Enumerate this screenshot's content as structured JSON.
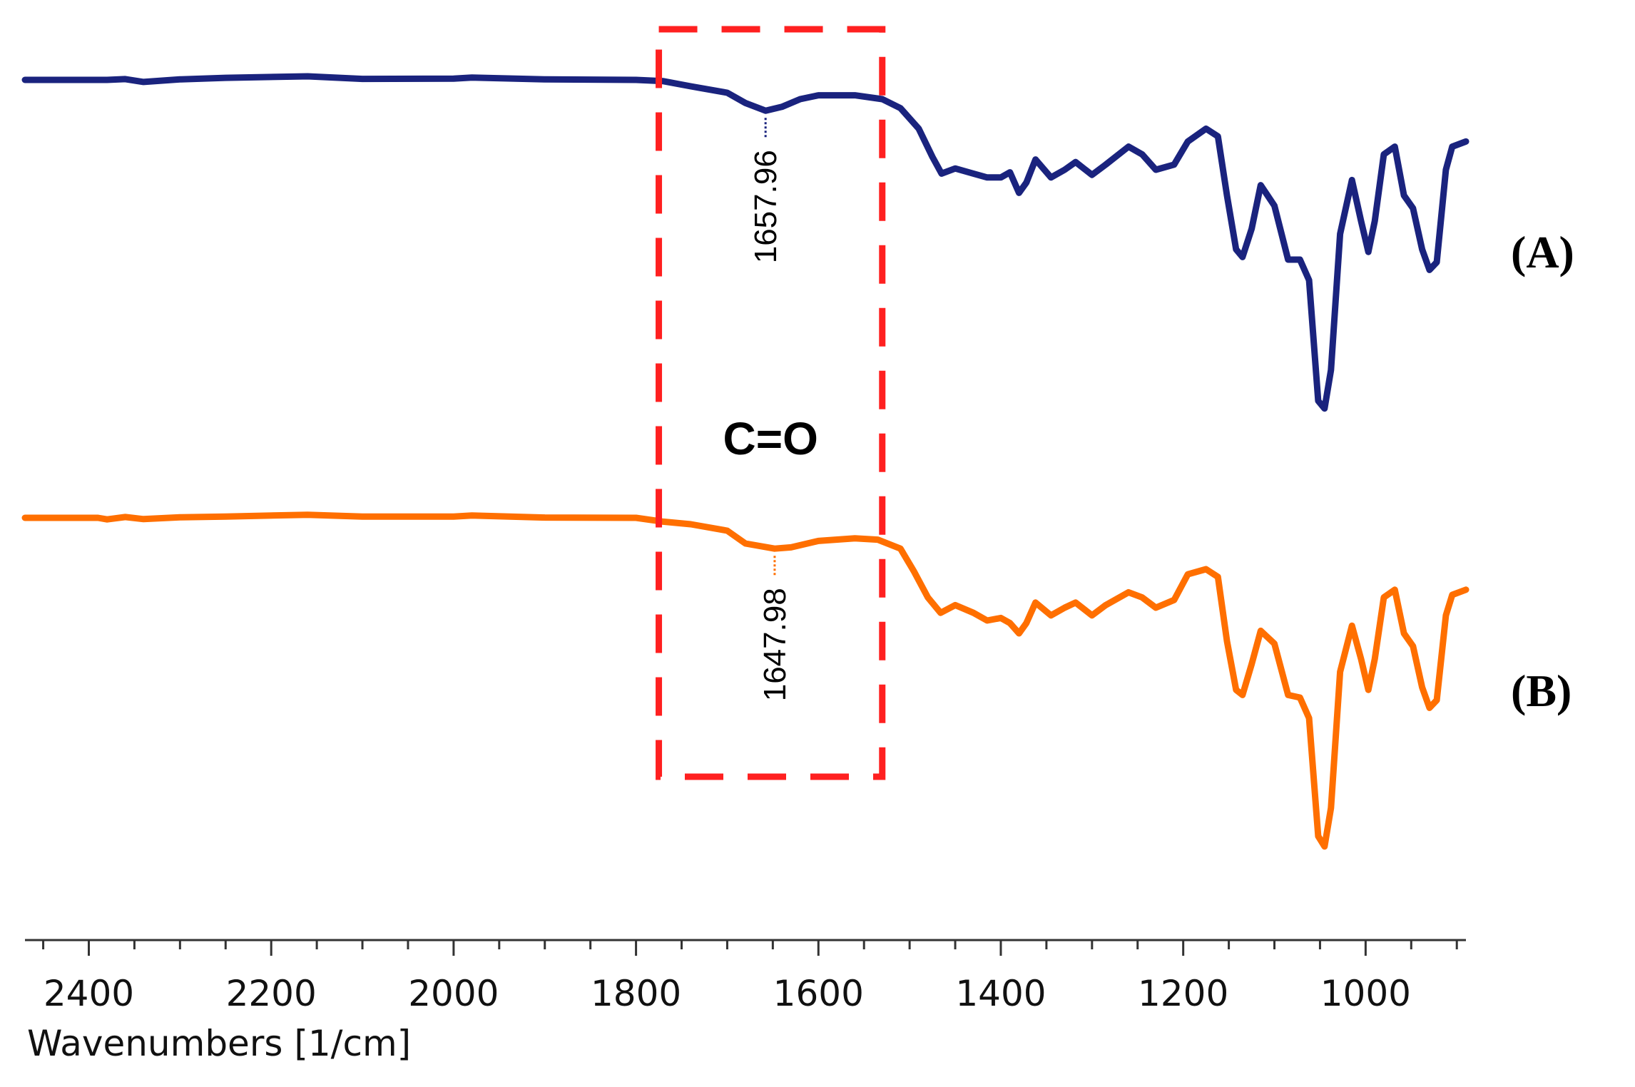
{
  "chart_data": {
    "type": "line",
    "xlabel": "Wavenumbers [1/cm]",
    "ylabel": "",
    "xlim": [
      2470,
      890
    ],
    "x_reversed": true,
    "x_ticks": [
      2400,
      2200,
      2000,
      1800,
      1600,
      1400,
      1200,
      1000
    ],
    "y_ticks_shown": false,
    "grid": false,
    "series": [
      {
        "name": "(A)",
        "color": "#1a237e",
        "peak_label": "1657.96",
        "peak_x": 1657.96,
        "points": [
          [
            2470,
            0.0
          ],
          [
            2380,
            0.0
          ],
          [
            2360,
            0.3
          ],
          [
            2340,
            -0.8
          ],
          [
            2300,
            0.2
          ],
          [
            2250,
            0.8
          ],
          [
            2160,
            1.4
          ],
          [
            2100,
            0.4
          ],
          [
            2000,
            0.5
          ],
          [
            1980,
            0.9
          ],
          [
            1900,
            0.2
          ],
          [
            1800,
            0.0
          ],
          [
            1770,
            -0.5
          ],
          [
            1740,
            -2.5
          ],
          [
            1700,
            -5.0
          ],
          [
            1680,
            -9.0
          ],
          [
            1657.96,
            -12.0
          ],
          [
            1640,
            -10.5
          ],
          [
            1620,
            -7.5
          ],
          [
            1600,
            -6.0
          ],
          [
            1560,
            -6.0
          ],
          [
            1530,
            -7.5
          ],
          [
            1510,
            -11.0
          ],
          [
            1490,
            -19.0
          ],
          [
            1475,
            -30.0
          ],
          [
            1465,
            -36.5
          ],
          [
            1450,
            -34.5
          ],
          [
            1430,
            -36.5
          ],
          [
            1415,
            -38.0
          ],
          [
            1400,
            -38.0
          ],
          [
            1390,
            -36.0
          ],
          [
            1380,
            -44.0
          ],
          [
            1372,
            -40.0
          ],
          [
            1362,
            -31.0
          ],
          [
            1345,
            -38.0
          ],
          [
            1330,
            -35.0
          ],
          [
            1318,
            -32.0
          ],
          [
            1300,
            -37.0
          ],
          [
            1285,
            -33.0
          ],
          [
            1260,
            -26.0
          ],
          [
            1245,
            -29.0
          ],
          [
            1230,
            -35.0
          ],
          [
            1210,
            -33.0
          ],
          [
            1195,
            -24.0
          ],
          [
            1175,
            -19.0
          ],
          [
            1162,
            -22.0
          ],
          [
            1152,
            -45.0
          ],
          [
            1142,
            -66.0
          ],
          [
            1135,
            -69.0
          ],
          [
            1125,
            -58.0
          ],
          [
            1115,
            -41.0
          ],
          [
            1100,
            -49.0
          ],
          [
            1085,
            -70.0
          ],
          [
            1072,
            -70.0
          ],
          [
            1062,
            -78.0
          ],
          [
            1052,
            -125.0
          ],
          [
            1045,
            -128.0
          ],
          [
            1038,
            -113.0
          ],
          [
            1028,
            -60.0
          ],
          [
            1015,
            -39.0
          ],
          [
            1005,
            -55.0
          ],
          [
            997,
            -67.0
          ],
          [
            990,
            -55.0
          ],
          [
            980,
            -29.0
          ],
          [
            968,
            -26.0
          ],
          [
            958,
            -45.0
          ],
          [
            948,
            -50.0
          ],
          [
            938,
            -66.0
          ],
          [
            930,
            -74.0
          ],
          [
            922,
            -71.0
          ],
          [
            912,
            -35.0
          ],
          [
            905,
            -26.0
          ],
          [
            890,
            -24.0
          ]
        ]
      },
      {
        "name": "(B)",
        "color": "#ff6f00",
        "peak_label": "1647.98",
        "peak_x": 1647.98,
        "points": [
          [
            2470,
            0.0
          ],
          [
            2390,
            0.0
          ],
          [
            2380,
            -0.6
          ],
          [
            2360,
            0.3
          ],
          [
            2340,
            -0.5
          ],
          [
            2300,
            0.2
          ],
          [
            2250,
            0.5
          ],
          [
            2160,
            1.2
          ],
          [
            2100,
            0.5
          ],
          [
            2000,
            0.5
          ],
          [
            1980,
            0.9
          ],
          [
            1900,
            0.1
          ],
          [
            1800,
            0.0
          ],
          [
            1770,
            -1.5
          ],
          [
            1740,
            -2.5
          ],
          [
            1700,
            -5.0
          ],
          [
            1680,
            -10.0
          ],
          [
            1647.98,
            -12.0
          ],
          [
            1630,
            -11.5
          ],
          [
            1600,
            -9.0
          ],
          [
            1560,
            -8.0
          ],
          [
            1535,
            -8.5
          ],
          [
            1510,
            -12.0
          ],
          [
            1495,
            -21.0
          ],
          [
            1480,
            -31.0
          ],
          [
            1466,
            -37.0
          ],
          [
            1450,
            -34.0
          ],
          [
            1430,
            -37.0
          ],
          [
            1415,
            -40.0
          ],
          [
            1400,
            -39.0
          ],
          [
            1390,
            -41.0
          ],
          [
            1380,
            -45.0
          ],
          [
            1372,
            -41.0
          ],
          [
            1362,
            -33.0
          ],
          [
            1345,
            -38.0
          ],
          [
            1330,
            -35.0
          ],
          [
            1318,
            -33.0
          ],
          [
            1300,
            -38.0
          ],
          [
            1285,
            -34.0
          ],
          [
            1260,
            -29.0
          ],
          [
            1245,
            -31.0
          ],
          [
            1230,
            -35.0
          ],
          [
            1210,
            -32.0
          ],
          [
            1195,
            -22.0
          ],
          [
            1175,
            -20.0
          ],
          [
            1162,
            -23.0
          ],
          [
            1152,
            -48.0
          ],
          [
            1142,
            -67.0
          ],
          [
            1135,
            -69.0
          ],
          [
            1125,
            -57.0
          ],
          [
            1115,
            -44.0
          ],
          [
            1100,
            -49.0
          ],
          [
            1085,
            -69.0
          ],
          [
            1072,
            -70.0
          ],
          [
            1062,
            -78.0
          ],
          [
            1052,
            -124.0
          ],
          [
            1045,
            -128.0
          ],
          [
            1038,
            -113.0
          ],
          [
            1028,
            -60.0
          ],
          [
            1015,
            -42.0
          ],
          [
            1005,
            -55.0
          ],
          [
            997,
            -67.0
          ],
          [
            990,
            -55.0
          ],
          [
            980,
            -31.0
          ],
          [
            968,
            -28.0
          ],
          [
            958,
            -45.0
          ],
          [
            948,
            -50.0
          ],
          [
            938,
            -66.0
          ],
          [
            930,
            -74.0
          ],
          [
            922,
            -71.0
          ],
          [
            912,
            -38.0
          ],
          [
            905,
            -30.0
          ],
          [
            890,
            -28.0
          ]
        ]
      }
    ],
    "annotations": {
      "region_label": "C=O",
      "region_x_range": [
        1775,
        1530
      ],
      "region_style": "dashed red rectangle",
      "region_color": "#ff2020"
    }
  }
}
